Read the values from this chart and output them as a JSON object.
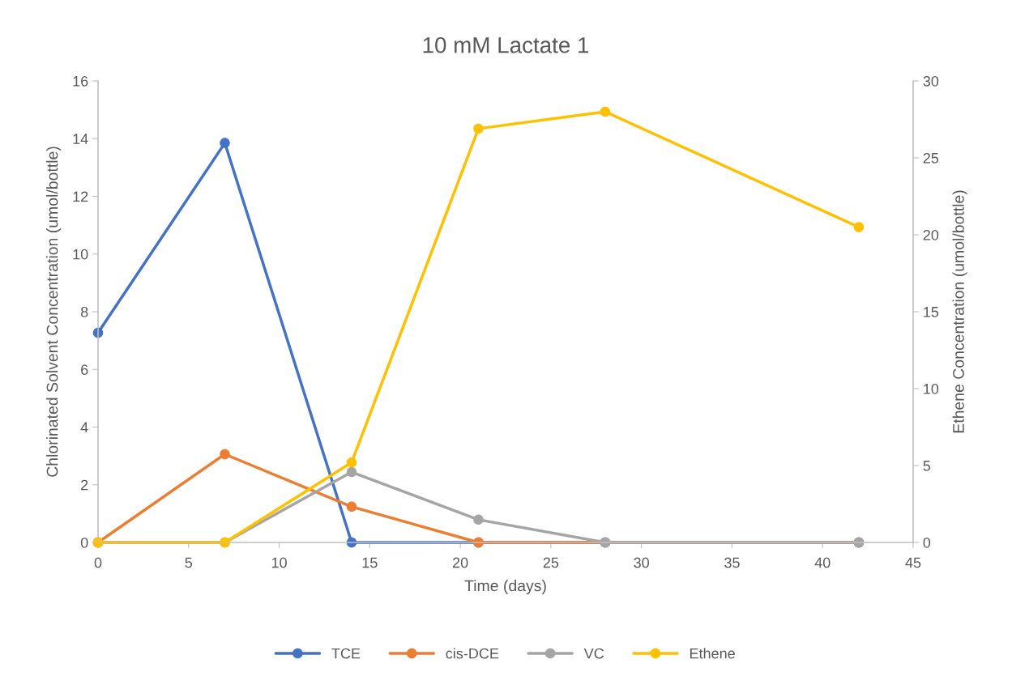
{
  "chart_data": {
    "type": "line",
    "title": "10 mM Lactate 1",
    "xlabel": "Time (days)",
    "ylabel": "Chlorinated Solvent Concentration (umol/bottle)",
    "y2label": "Ethene Concentration (umol/bottle)",
    "x": [
      0,
      7,
      14,
      21,
      28,
      42
    ],
    "series": [
      {
        "name": "TCE",
        "color": "#4472c4",
        "values": [
          7.27,
          13.85,
          0,
          0,
          0,
          0
        ]
      },
      {
        "name": "cis-DCE",
        "color": "#ed7d31",
        "values": [
          0,
          3.06,
          1.24,
          0,
          0,
          0
        ]
      },
      {
        "name": "VC",
        "color": "#a5a5a5",
        "values": [
          0,
          0,
          2.44,
          0.79,
          0,
          0
        ]
      },
      {
        "name": "Ethene",
        "color": "#ffc000",
        "values": [
          0,
          0,
          5.2,
          26.9,
          28.0,
          20.5
        ],
        "axis": "y2"
      }
    ],
    "xlim": [
      0,
      45
    ],
    "xticks": [
      0,
      5,
      10,
      15,
      20,
      25,
      30,
      35,
      40,
      45
    ],
    "ylim": [
      0,
      16
    ],
    "yticks": [
      0,
      2,
      4,
      6,
      8,
      10,
      12,
      14,
      16
    ],
    "y2lim": [
      0,
      30
    ],
    "y2ticks": [
      0,
      5,
      10,
      15,
      20,
      25,
      30
    ],
    "marker": "circle",
    "line_style": "solid",
    "grid": false,
    "legend": "bottom"
  }
}
